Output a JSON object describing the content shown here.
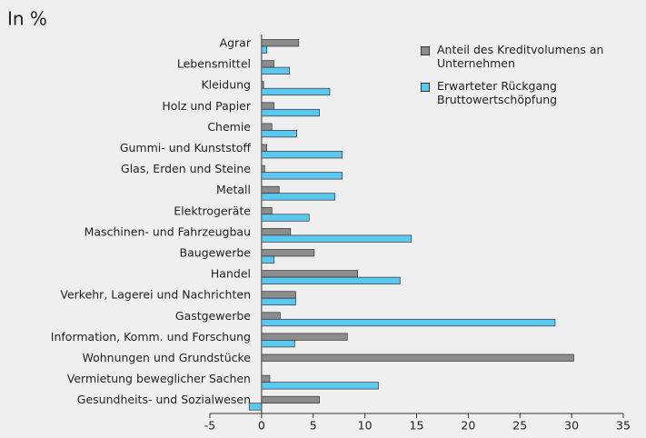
{
  "chart_data": {
    "type": "hbar",
    "title": "In %",
    "categories": [
      "Agrar",
      "Lebensmittel",
      "Kleidung",
      "Holz und Papier",
      "Chemie",
      "Gummi- und Kunststoff",
      "Glas, Erden und Steine",
      "Metall",
      "Elektrogeräte",
      "Maschinen- und Fahrzeugbau",
      "Baugewerbe",
      "Handel",
      "Verkehr, Lagerei und Nachrichten",
      "Gastgewerbe",
      "Information, Komm. und Forschung",
      "Wohnungen und Grundstücke",
      "Vermietung beweglicher Sachen",
      "Gesundheits-  und Sozialwesen"
    ],
    "series": [
      {
        "name": "Anteil des Kreditvolumens an Unternehmen",
        "color": "#8c8c8c",
        "values": [
          3.6,
          1.2,
          0.2,
          1.2,
          1.0,
          0.5,
          0.3,
          1.7,
          1.0,
          2.8,
          5.1,
          9.3,
          3.3,
          1.8,
          8.3,
          30.2,
          0.8,
          5.6
        ]
      },
      {
        "name": "Erwarteter Rückgang Bruttowertschöpfung",
        "color": "#5ac8f0",
        "values": [
          0.5,
          2.7,
          6.6,
          5.6,
          3.4,
          7.8,
          7.8,
          7.1,
          4.6,
          14.5,
          1.2,
          13.4,
          3.3,
          28.4,
          3.2,
          0,
          11.3,
          -1.2
        ]
      }
    ],
    "xlim": [
      -5,
      35
    ],
    "xticks": [
      -5,
      0,
      5,
      10,
      15,
      20,
      25,
      30,
      35
    ],
    "legend": "upper right"
  }
}
